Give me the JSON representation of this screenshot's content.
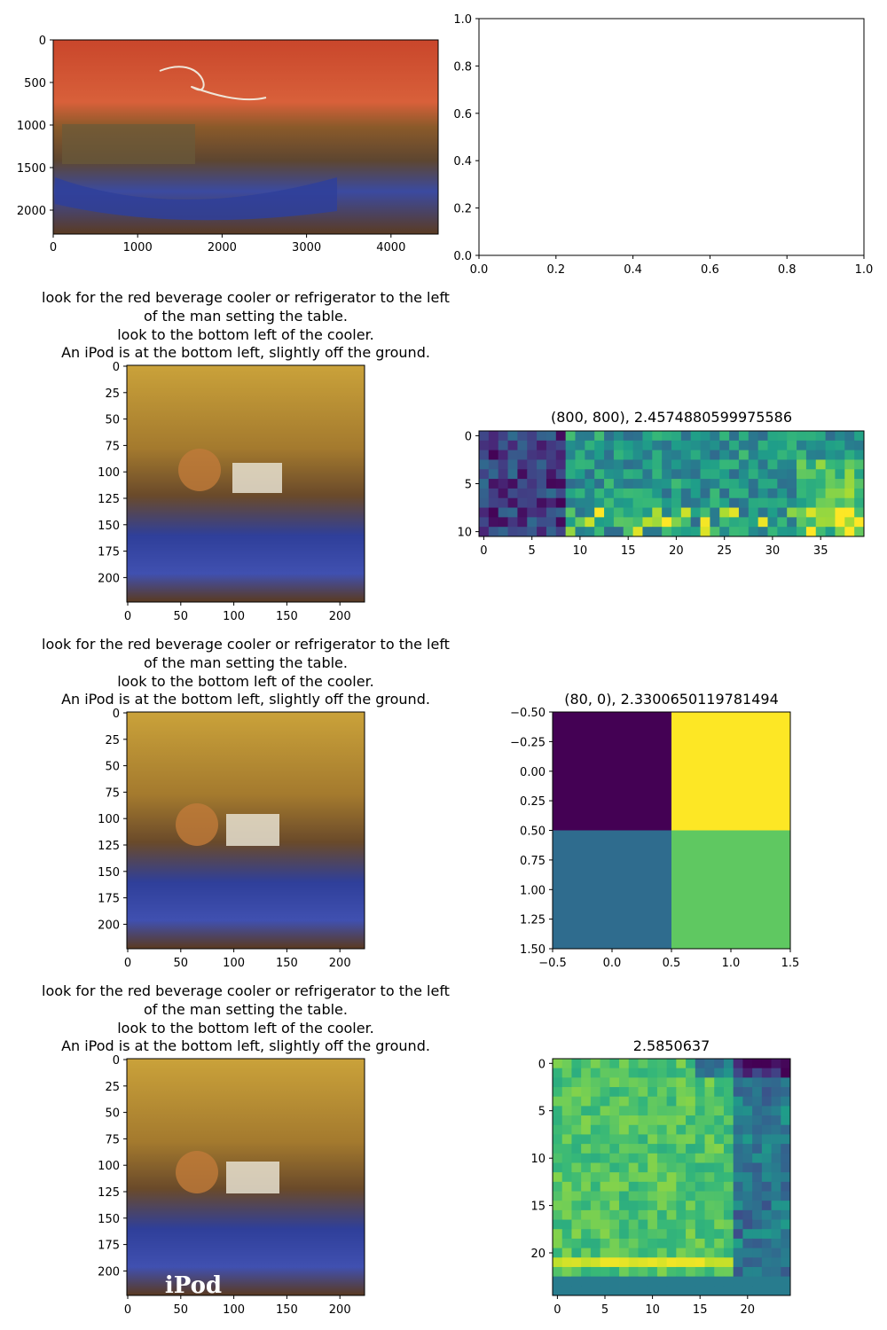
{
  "figure": {
    "caption_lines": [
      "look for the red beverage cooler or refrigerator to the left",
      "of the man setting the table.",
      "look to the bottom left of the cooler.",
      "An iPod is at the bottom left, slightly off the ground."
    ],
    "colormap": "viridis"
  },
  "chart_data": [
    {
      "type": "image",
      "subject": "panorama",
      "xlim": [
        0,
        4560
      ],
      "ylim": [
        2300,
        0
      ],
      "xticks": [
        "0",
        "1000",
        "2000",
        "3000",
        "4000"
      ],
      "yticks": [
        "0",
        "500",
        "1000",
        "1500",
        "2000"
      ],
      "title": ""
    },
    {
      "type": "empty_axes",
      "xlim": [
        0.0,
        1.0
      ],
      "ylim": [
        0.0,
        1.0
      ],
      "xticks": [
        "0.0",
        "0.2",
        "0.4",
        "0.6",
        "0.8",
        "1.0"
      ],
      "yticks": [
        "0.0",
        "0.2",
        "0.4",
        "0.6",
        "0.8",
        "1.0"
      ],
      "title": ""
    },
    {
      "type": "image",
      "subject": "crop",
      "title": "look for the red beverage cooler or refrigerator to the left\nof the man setting the table.\nlook to the bottom left of the cooler.\nAn iPod is at the bottom left, slightly off the ground.",
      "xlim": [
        0,
        224
      ],
      "ylim": [
        224,
        0
      ],
      "xticks": [
        "0",
        "50",
        "100",
        "150",
        "200"
      ],
      "yticks": [
        "0",
        "25",
        "50",
        "75",
        "100",
        "125",
        "150",
        "175",
        "200"
      ]
    },
    {
      "type": "heatmap",
      "title": "(800, 800), 2.4574880599975586",
      "rows": 11,
      "cols": 40,
      "xticks": [
        "0",
        "5",
        "10",
        "15",
        "20",
        "25",
        "30",
        "35"
      ],
      "yticks": [
        "0",
        "5",
        "10"
      ],
      "colormap": "viridis"
    },
    {
      "type": "image",
      "subject": "crop",
      "title": "look for the red beverage cooler or refrigerator to the left\nof the man setting the table.\nlook to the bottom left of the cooler.\nAn iPod is at the bottom left, slightly off the ground.",
      "xlim": [
        0,
        224
      ],
      "ylim": [
        224,
        0
      ],
      "xticks": [
        "0",
        "50",
        "100",
        "150",
        "200"
      ],
      "yticks": [
        "0",
        "25",
        "50",
        "75",
        "100",
        "125",
        "150",
        "175",
        "200"
      ]
    },
    {
      "type": "heatmap",
      "title": "(80, 0), 2.3300650119781494",
      "rows": 2,
      "cols": 2,
      "values": [
        [
          0.0,
          1.0
        ],
        [
          0.35,
          0.75
        ]
      ],
      "xlim": [
        -0.5,
        1.5
      ],
      "ylim": [
        1.5,
        -0.5
      ],
      "xticks": [
        "−0.5",
        "0.0",
        "0.5",
        "1.0",
        "1.5"
      ],
      "yticks": [
        "−0.50",
        "−0.25",
        "0.00",
        "0.25",
        "0.50",
        "0.75",
        "1.00",
        "1.25",
        "1.50"
      ],
      "colormap": "viridis"
    },
    {
      "type": "image",
      "subject": "crop",
      "title": "look for the red beverage cooler or refrigerator to the left\nof the man setting the table.\nlook to the bottom left of the cooler.\nAn iPod is at the bottom left, slightly off the ground.",
      "overlay_text": "iPod",
      "xlim": [
        0,
        224
      ],
      "ylim": [
        224,
        0
      ],
      "xticks": [
        "0",
        "50",
        "100",
        "150",
        "200"
      ],
      "yticks": [
        "0",
        "25",
        "50",
        "75",
        "100",
        "125",
        "150",
        "175",
        "200"
      ]
    },
    {
      "type": "heatmap",
      "title": "2.5850637",
      "rows": 25,
      "cols": 25,
      "xticks": [
        "0",
        "5",
        "10",
        "15",
        "20"
      ],
      "yticks": [
        "0",
        "5",
        "10",
        "15",
        "20"
      ],
      "colormap": "viridis"
    }
  ]
}
